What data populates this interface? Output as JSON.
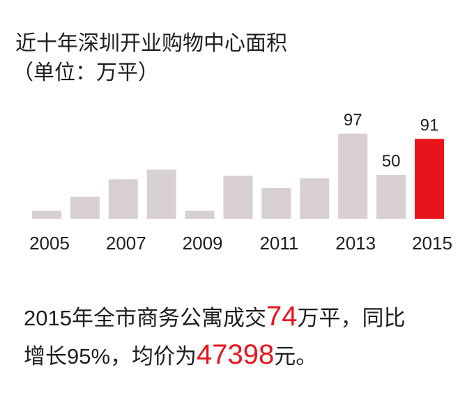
{
  "chart_data": {
    "type": "bar",
    "title": "近十年深圳开业购物中心面积",
    "subtitle": "（单位：万平）",
    "categories": [
      "2005",
      null,
      "2007",
      null,
      "2009",
      null,
      "2011",
      null,
      "2013",
      null,
      "2015"
    ],
    "values": [
      9,
      25,
      45,
      56,
      9,
      49,
      35,
      46,
      97,
      50,
      91
    ],
    "value_labels": [
      null,
      null,
      null,
      null,
      null,
      null,
      null,
      null,
      "97",
      "50",
      "91"
    ],
    "colors": [
      "#d8d0d0",
      "#d8d0d0",
      "#d8d0d0",
      "#d8d0d0",
      "#d8d0d0",
      "#d8d0d0",
      "#d8d0d0",
      "#d8d0d0",
      "#d8d0d0",
      "#d8d0d0",
      "#e8141c"
    ],
    "ylim": [
      0,
      100
    ]
  },
  "caption": {
    "lines": [
      [
        {
          "text": "2015年全市商务公寓成交"
        },
        {
          "text": "74",
          "highlight": true
        },
        {
          "text": "万平，同比"
        }
      ],
      [
        {
          "text": "增长95%，均价为"
        },
        {
          "text": "47398",
          "highlight": true
        },
        {
          "text": "元。"
        }
      ]
    ]
  }
}
